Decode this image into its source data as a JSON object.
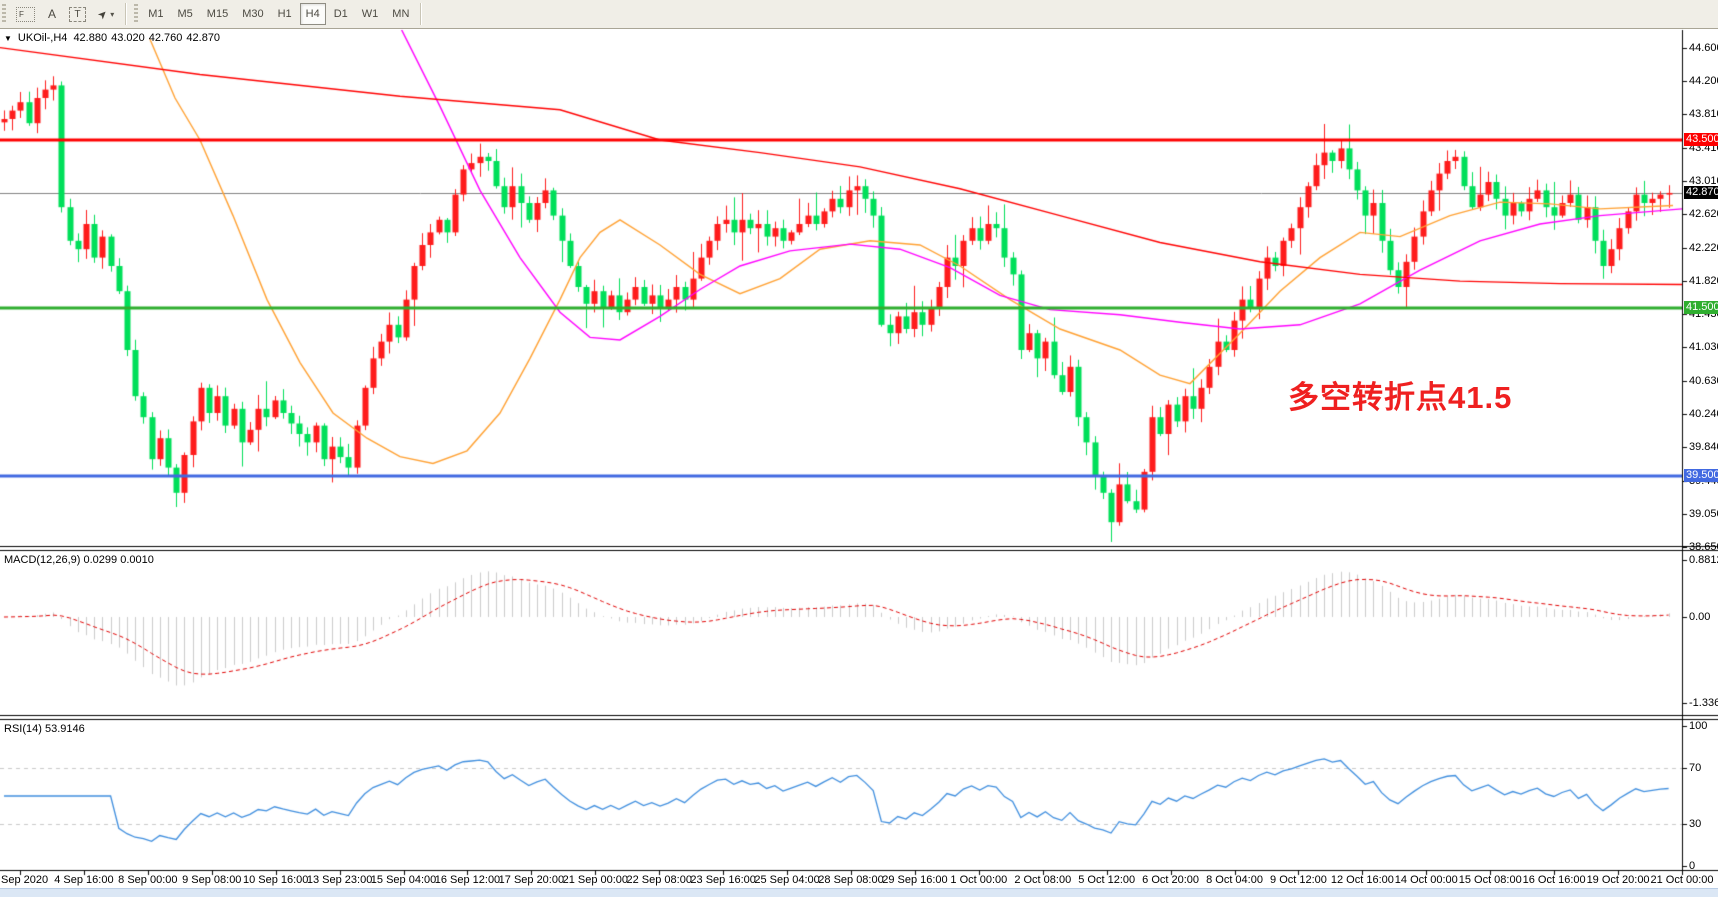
{
  "toolbar": {
    "tools": [
      {
        "name": "pointer-tool",
        "glyph": "F"
      },
      {
        "name": "text-tool",
        "glyph": "A"
      },
      {
        "name": "text-label-tool",
        "glyph": "T"
      },
      {
        "name": "arrows-tool",
        "glyph": "➤",
        "dropdown": "▾"
      }
    ],
    "timeframes": [
      "M1",
      "M5",
      "M15",
      "M30",
      "H1",
      "H4",
      "D1",
      "W1",
      "MN"
    ],
    "active_timeframe": "H4"
  },
  "symbol_bar": {
    "dropdown_glyph": "▼",
    "symbol": "UKOil-,H4",
    "open": "42.880",
    "high": "43.020",
    "low": "42.760",
    "close": "42.870"
  },
  "annotation": {
    "text": "多空转折点41.5",
    "color": "#ef2020"
  },
  "chart_data": {
    "type": "candlestick",
    "symbol": "UKOil-",
    "timeframe": "H4",
    "last_ohlc": {
      "open": 42.88,
      "high": 43.02,
      "low": 42.76,
      "close": 42.87
    },
    "up_color": "#fe1c1c",
    "down_color": "#00df5a",
    "ylim": [
      38.65,
      44.79
    ],
    "price_axis_labels": [
      "44.600",
      "44.200",
      "43.810",
      "43.410",
      "43.010",
      "42.620",
      "42.220",
      "41.820",
      "41.430",
      "41.030",
      "40.630",
      "40.240",
      "39.840",
      "39.440",
      "39.050",
      "38.650"
    ],
    "hlines": [
      {
        "price": 43.5,
        "label": "43.500",
        "color": "#fe0000"
      },
      {
        "price": 41.5,
        "label": "41.500",
        "color": "#2fae2f"
      },
      {
        "price": 39.5,
        "label": "39.500",
        "color": "#4169e1"
      }
    ],
    "current_price": {
      "value": 42.87,
      "label": "42.870",
      "color": "#000000"
    },
    "candles": {
      "count": 204,
      "close_anchors": [
        [
          0,
          43.75
        ],
        [
          1,
          43.85
        ],
        [
          2,
          43.95
        ],
        [
          3,
          43.7
        ],
        [
          4,
          44.0
        ],
        [
          5,
          44.1
        ],
        [
          6,
          44.15
        ],
        [
          7,
          42.7
        ],
        [
          8,
          42.3
        ],
        [
          9,
          42.2
        ],
        [
          10,
          42.5
        ],
        [
          11,
          42.1
        ],
        [
          12,
          42.35
        ],
        [
          13,
          42.0
        ],
        [
          14,
          41.7
        ],
        [
          15,
          41.0
        ],
        [
          16,
          40.45
        ],
        [
          17,
          40.2
        ],
        [
          18,
          39.7
        ],
        [
          19,
          39.95
        ],
        [
          20,
          39.6
        ],
        [
          21,
          39.3
        ],
        [
          22,
          39.75
        ],
        [
          23,
          40.15
        ],
        [
          24,
          40.55
        ],
        [
          25,
          40.25
        ],
        [
          26,
          40.45
        ],
        [
          27,
          40.1
        ],
        [
          28,
          40.3
        ],
        [
          29,
          39.9
        ],
        [
          30,
          40.05
        ],
        [
          31,
          40.3
        ],
        [
          32,
          40.2
        ],
        [
          33,
          40.4
        ],
        [
          34,
          40.25
        ],
        [
          36,
          40.0
        ],
        [
          37,
          39.9
        ],
        [
          38,
          40.1
        ],
        [
          39,
          39.7
        ],
        [
          40,
          39.85
        ],
        [
          42,
          39.6
        ],
        [
          43,
          40.1
        ],
        [
          44,
          40.55
        ],
        [
          45,
          40.9
        ],
        [
          47,
          41.3
        ],
        [
          48,
          41.15
        ],
        [
          49,
          41.6
        ],
        [
          50,
          42.0
        ],
        [
          51,
          42.25
        ],
        [
          53,
          42.55
        ],
        [
          54,
          42.4
        ],
        [
          55,
          42.85
        ],
        [
          56,
          43.15
        ],
        [
          58,
          43.3
        ],
        [
          59,
          43.25
        ],
        [
          60,
          42.95
        ],
        [
          61,
          42.7
        ],
        [
          62,
          42.95
        ],
        [
          64,
          42.55
        ],
        [
          65,
          42.75
        ],
        [
          66,
          42.9
        ],
        [
          67,
          42.6
        ],
        [
          68,
          42.3
        ],
        [
          69,
          42.0
        ],
        [
          70,
          41.75
        ],
        [
          71,
          41.55
        ],
        [
          72,
          41.7
        ],
        [
          73,
          41.5
        ],
        [
          74,
          41.65
        ],
        [
          75,
          41.45
        ],
        [
          76,
          41.6
        ],
        [
          77,
          41.75
        ],
        [
          78,
          41.55
        ],
        [
          79,
          41.65
        ],
        [
          80,
          41.5
        ],
        [
          81,
          41.6
        ],
        [
          82,
          41.75
        ],
        [
          83,
          41.6
        ],
        [
          84,
          41.85
        ],
        [
          85,
          42.1
        ],
        [
          86,
          42.3
        ],
        [
          87,
          42.5
        ],
        [
          88,
          42.55
        ],
        [
          89,
          42.4
        ],
        [
          90,
          42.55
        ],
        [
          91,
          42.45
        ],
        [
          92,
          42.5
        ],
        [
          93,
          42.35
        ],
        [
          94,
          42.45
        ],
        [
          95,
          42.3
        ],
        [
          96,
          42.4
        ],
        [
          97,
          42.5
        ],
        [
          98,
          42.6
        ],
        [
          99,
          42.5
        ],
        [
          100,
          42.65
        ],
        [
          101,
          42.8
        ],
        [
          102,
          42.7
        ],
        [
          103,
          42.9
        ],
        [
          104,
          42.95
        ],
        [
          105,
          42.8
        ],
        [
          106,
          42.6
        ],
        [
          107,
          41.3
        ],
        [
          108,
          41.2
        ],
        [
          109,
          41.4
        ],
        [
          110,
          41.25
        ],
        [
          111,
          41.45
        ],
        [
          112,
          41.3
        ],
        [
          113,
          41.5
        ],
        [
          114,
          41.75
        ],
        [
          115,
          42.1
        ],
        [
          116,
          42.0
        ],
        [
          117,
          42.3
        ],
        [
          118,
          42.45
        ],
        [
          119,
          42.3
        ],
        [
          120,
          42.5
        ],
        [
          121,
          42.45
        ],
        [
          122,
          42.1
        ],
        [
          123,
          41.9
        ],
        [
          124,
          41.0
        ],
        [
          125,
          41.2
        ],
        [
          126,
          40.9
        ],
        [
          127,
          41.1
        ],
        [
          128,
          40.7
        ],
        [
          129,
          40.5
        ],
        [
          130,
          40.8
        ],
        [
          131,
          40.2
        ],
        [
          132,
          39.9
        ],
        [
          133,
          39.5
        ],
        [
          134,
          39.3
        ],
        [
          135,
          38.95
        ],
        [
          136,
          39.4
        ],
        [
          137,
          39.2
        ],
        [
          138,
          39.1
        ],
        [
          139,
          39.55
        ],
        [
          140,
          40.2
        ],
        [
          141,
          40.0
        ],
        [
          142,
          40.35
        ],
        [
          143,
          40.15
        ],
        [
          144,
          40.45
        ],
        [
          145,
          40.3
        ],
        [
          146,
          40.55
        ],
        [
          147,
          40.8
        ],
        [
          148,
          41.1
        ],
        [
          149,
          41.0
        ],
        [
          150,
          41.35
        ],
        [
          151,
          41.6
        ],
        [
          152,
          41.5
        ],
        [
          153,
          41.85
        ],
        [
          154,
          42.1
        ],
        [
          155,
          42.0
        ],
        [
          156,
          42.3
        ],
        [
          157,
          42.45
        ],
        [
          158,
          42.7
        ],
        [
          159,
          42.95
        ],
        [
          160,
          43.2
        ],
        [
          161,
          43.35
        ],
        [
          162,
          43.25
        ],
        [
          163,
          43.4
        ],
        [
          164,
          43.15
        ],
        [
          165,
          42.9
        ],
        [
          166,
          42.6
        ],
        [
          167,
          42.75
        ],
        [
          168,
          42.3
        ],
        [
          169,
          41.95
        ],
        [
          170,
          41.75
        ],
        [
          171,
          42.05
        ],
        [
          172,
          42.35
        ],
        [
          173,
          42.65
        ],
        [
          174,
          42.9
        ],
        [
          175,
          43.1
        ],
        [
          176,
          43.25
        ],
        [
          177,
          43.3
        ],
        [
          178,
          42.95
        ],
        [
          179,
          42.7
        ],
        [
          180,
          42.85
        ],
        [
          181,
          43.0
        ],
        [
          182,
          42.8
        ],
        [
          183,
          42.6
        ],
        [
          184,
          42.75
        ],
        [
          185,
          42.65
        ],
        [
          186,
          42.8
        ],
        [
          187,
          42.9
        ],
        [
          188,
          42.7
        ],
        [
          189,
          42.6
        ],
        [
          190,
          42.75
        ],
        [
          191,
          42.85
        ],
        [
          192,
          42.55
        ],
        [
          193,
          42.7
        ],
        [
          194,
          42.3
        ],
        [
          195,
          42.0
        ],
        [
          196,
          42.2
        ],
        [
          197,
          42.45
        ],
        [
          198,
          42.65
        ],
        [
          199,
          42.85
        ],
        [
          200,
          42.75
        ],
        [
          201,
          42.8
        ],
        [
          202,
          42.85
        ],
        [
          203,
          42.87
        ]
      ]
    },
    "moving_averages": [
      {
        "name": "ma-fast-orange",
        "color": "#ffa133",
        "points": [
          [
            150,
            44.7
          ],
          [
            175,
            44.0
          ],
          [
            200,
            43.5
          ],
          [
            233,
            42.6
          ],
          [
            267,
            41.6
          ],
          [
            300,
            40.85
          ],
          [
            333,
            40.25
          ],
          [
            367,
            39.95
          ],
          [
            400,
            39.73
          ],
          [
            433,
            39.65
          ],
          [
            467,
            39.8
          ],
          [
            500,
            40.25
          ],
          [
            530,
            40.9
          ],
          [
            560,
            41.6
          ],
          [
            580,
            42.1
          ],
          [
            600,
            42.4
          ],
          [
            620,
            42.55
          ],
          [
            660,
            42.25
          ],
          [
            700,
            41.9
          ],
          [
            740,
            41.67
          ],
          [
            780,
            41.85
          ],
          [
            820,
            42.2
          ],
          [
            870,
            42.3
          ],
          [
            920,
            42.25
          ],
          [
            960,
            42.0
          ],
          [
            1010,
            41.6
          ],
          [
            1060,
            41.25
          ],
          [
            1120,
            41.0
          ],
          [
            1160,
            40.7
          ],
          [
            1190,
            40.6
          ],
          [
            1240,
            41.2
          ],
          [
            1280,
            41.7
          ],
          [
            1320,
            42.1
          ],
          [
            1360,
            42.4
          ],
          [
            1400,
            42.35
          ],
          [
            1450,
            42.6
          ],
          [
            1500,
            42.76
          ],
          [
            1550,
            42.74
          ],
          [
            1600,
            42.68
          ],
          [
            1673,
            42.72
          ]
        ]
      },
      {
        "name": "ma-medium-magenta",
        "color": "#ff00ff",
        "points": [
          [
            400,
            44.85
          ],
          [
            440,
            43.9
          ],
          [
            480,
            42.9
          ],
          [
            520,
            42.1
          ],
          [
            560,
            41.45
          ],
          [
            590,
            41.15
          ],
          [
            620,
            41.12
          ],
          [
            660,
            41.4
          ],
          [
            700,
            41.72
          ],
          [
            740,
            42.0
          ],
          [
            790,
            42.18
          ],
          [
            850,
            42.26
          ],
          [
            900,
            42.2
          ],
          [
            950,
            41.98
          ],
          [
            1000,
            41.65
          ],
          [
            1050,
            41.48
          ],
          [
            1120,
            41.42
          ],
          [
            1180,
            41.33
          ],
          [
            1240,
            41.25
          ],
          [
            1300,
            41.3
          ],
          [
            1360,
            41.55
          ],
          [
            1420,
            41.95
          ],
          [
            1480,
            42.3
          ],
          [
            1540,
            42.5
          ],
          [
            1600,
            42.6
          ],
          [
            1682,
            42.68
          ]
        ]
      },
      {
        "name": "ma-slow-red",
        "color": "#ff0000",
        "points": [
          [
            0,
            44.6
          ],
          [
            200,
            44.28
          ],
          [
            400,
            44.02
          ],
          [
            560,
            43.86
          ],
          [
            660,
            43.5
          ],
          [
            760,
            43.35
          ],
          [
            860,
            43.18
          ],
          [
            960,
            42.92
          ],
          [
            1060,
            42.6
          ],
          [
            1160,
            42.28
          ],
          [
            1260,
            42.05
          ],
          [
            1360,
            41.9
          ],
          [
            1460,
            41.82
          ],
          [
            1560,
            41.79
          ],
          [
            1682,
            41.78
          ]
        ]
      }
    ],
    "macd": {
      "label": "MACD(12,26,9)",
      "params": [
        12,
        26,
        9
      ],
      "value_main": "0.0299",
      "value_signal": "0.0010",
      "axis_labels": [
        "0.8812",
        "0.00",
        "-1.3368"
      ],
      "axis_values": [
        0.8812,
        0.0,
        -1.3368
      ],
      "histogram_color": "#cbcbcb",
      "signal_color": "#e00000"
    },
    "rsi": {
      "label": "RSI(14)",
      "period": 14,
      "value": "53.9146",
      "axis_labels": [
        "100",
        "70",
        "30",
        "0"
      ],
      "axis_values": [
        100,
        70,
        30,
        0
      ],
      "levels": [
        70,
        30
      ],
      "color": "#3f8ede"
    },
    "time_axis_labels": [
      "3 Sep 2020",
      "4 Sep 16:00",
      "8 Sep 00:00",
      "9 Sep 08:00",
      "10 Sep 16:00",
      "13 Sep 23:00",
      "15 Sep 04:00",
      "16 Sep 12:00",
      "17 Sep 20:00",
      "21 Sep 00:00",
      "22 Sep 08:00",
      "23 Sep 16:00",
      "25 Sep 04:00",
      "28 Sep 08:00",
      "29 Sep 16:00",
      "1 Oct 00:00",
      "2 Oct 08:00",
      "5 Oct 12:00",
      "6 Oct 20:00",
      "8 Oct 04:00",
      "9 Oct 12:00",
      "12 Oct 16:00",
      "14 Oct 00:00",
      "15 Oct 08:00",
      "16 Oct 16:00",
      "19 Oct 20:00",
      "21 Oct 00:00"
    ]
  }
}
